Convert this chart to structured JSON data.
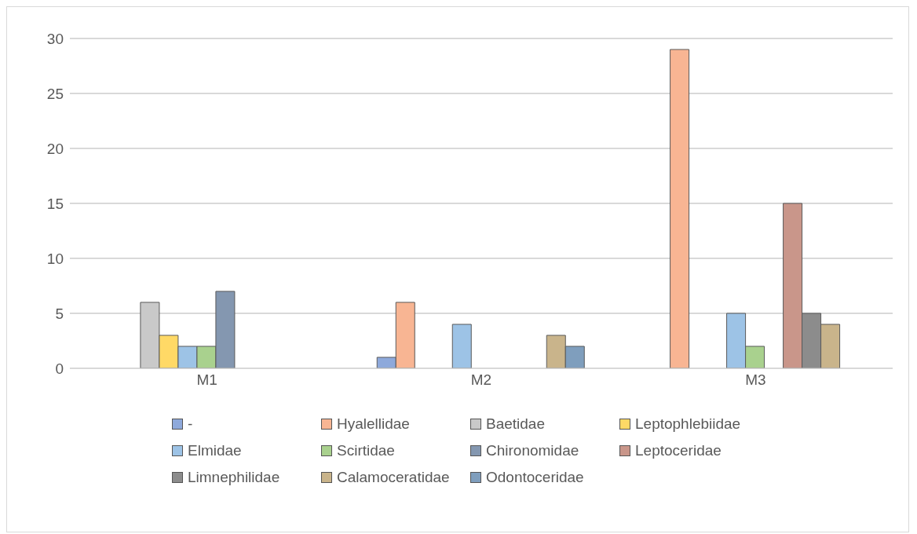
{
  "chart_data": {
    "type": "bar",
    "categories": [
      "M1",
      "M2",
      "M3"
    ],
    "series": [
      {
        "name": "-",
        "color": "#8ea9db",
        "values": [
          null,
          1,
          null
        ]
      },
      {
        "name": "Hyalellidae",
        "color": "#f8b593",
        "values": [
          null,
          6,
          29
        ]
      },
      {
        "name": "Baetidae",
        "color": "#c9c9c9",
        "values": [
          6,
          null,
          null
        ]
      },
      {
        "name": "Leptophlebiidae",
        "color": "#ffd966",
        "values": [
          3,
          null,
          null
        ]
      },
      {
        "name": "Elmidae",
        "color": "#9dc3e6",
        "values": [
          2,
          4,
          5
        ]
      },
      {
        "name": "Scirtidae",
        "color": "#a9d18e",
        "values": [
          2,
          null,
          2
        ]
      },
      {
        "name": "Chironomidae",
        "color": "#8497b0",
        "values": [
          7,
          null,
          null
        ]
      },
      {
        "name": "Leptoceridae",
        "color": "#c9968a",
        "values": [
          null,
          null,
          15
        ]
      },
      {
        "name": "Limnephilidae",
        "color": "#8c8c8c",
        "values": [
          null,
          null,
          5
        ]
      },
      {
        "name": "Calamoceratidae",
        "color": "#c9b48b",
        "values": [
          null,
          3,
          4
        ]
      },
      {
        "name": "Odontoceridae",
        "color": "#7f9ebd",
        "values": [
          null,
          2,
          null
        ]
      }
    ],
    "ylim": [
      0,
      30
    ],
    "yticks": [
      0,
      5,
      10,
      15,
      20,
      25,
      30
    ],
    "grid": "y",
    "legend": "bottom"
  }
}
